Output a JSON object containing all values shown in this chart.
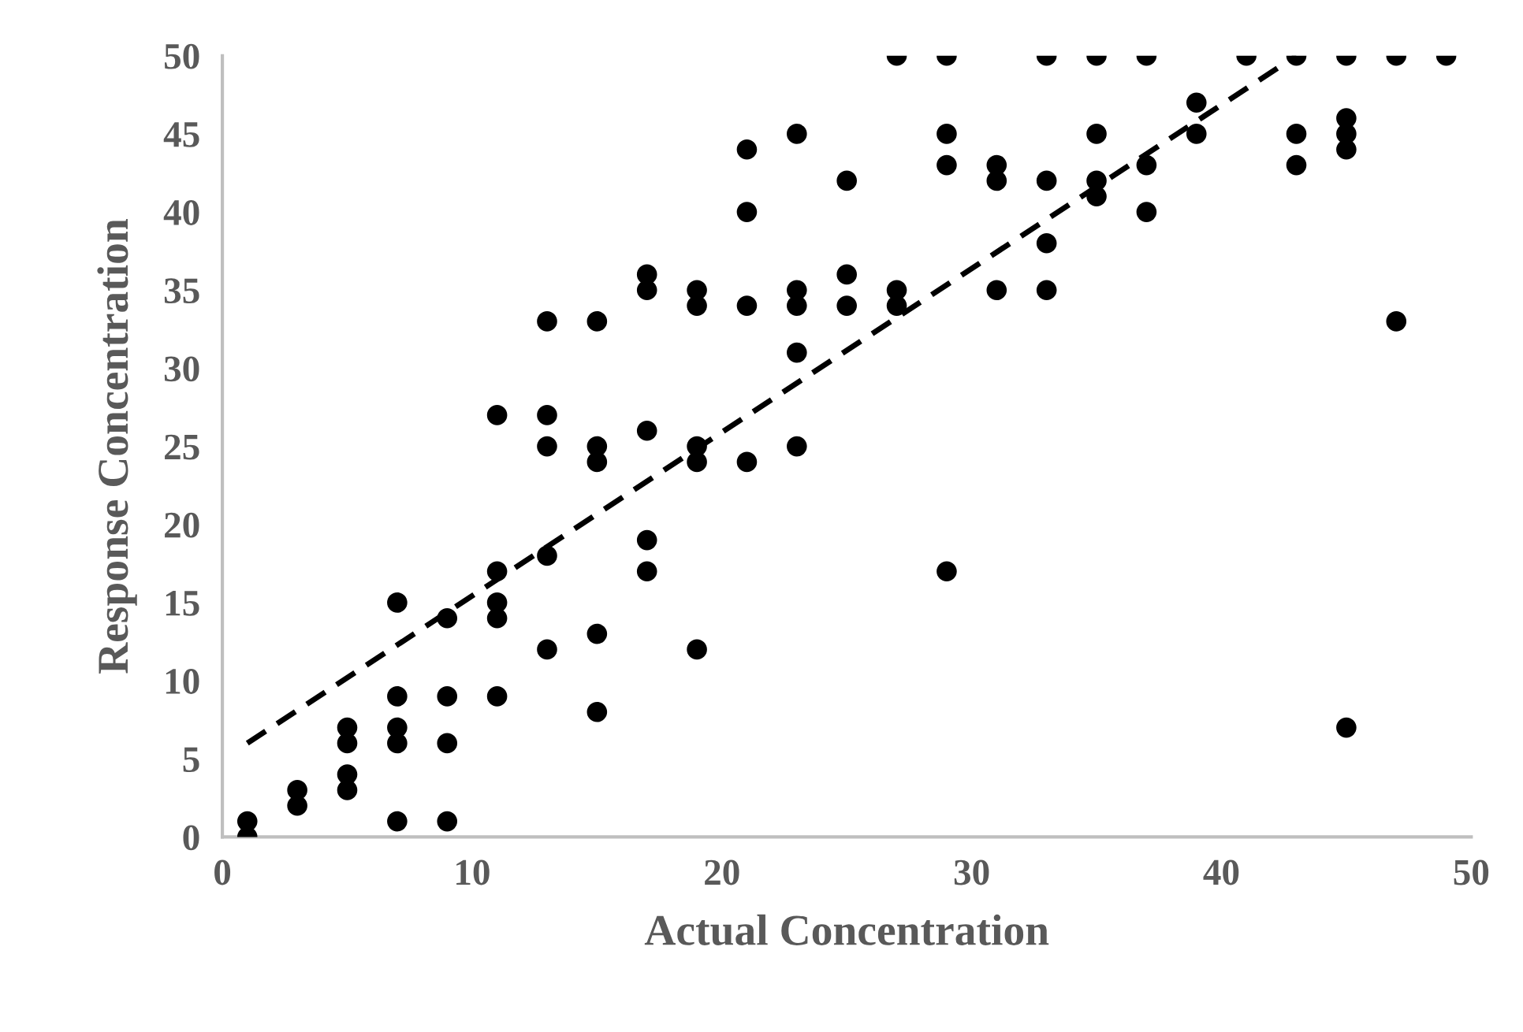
{
  "chart_data": {
    "type": "scatter",
    "xlabel": "Actual Concentration",
    "ylabel": "Response Concentration",
    "xlim": [
      0,
      50
    ],
    "ylim": [
      0,
      50
    ],
    "xticks": [
      0,
      10,
      20,
      30,
      40,
      50
    ],
    "yticks": [
      0,
      5,
      10,
      15,
      20,
      25,
      30,
      35,
      40,
      45,
      50
    ],
    "grid": false,
    "legend": false,
    "marker": "circle",
    "series": [
      {
        "color": "#000000",
        "x": [
          1,
          1,
          3,
          3,
          5,
          5,
          5,
          5,
          7,
          7,
          7,
          7,
          7,
          9,
          9,
          9,
          9,
          11,
          11,
          11,
          11,
          11,
          13,
          13,
          13,
          13,
          13,
          15,
          15,
          15,
          15,
          15,
          17,
          17,
          17,
          17,
          17,
          19,
          19,
          19,
          19,
          19,
          21,
          21,
          21,
          21,
          23,
          23,
          23,
          23,
          23,
          25,
          25,
          25,
          27,
          27,
          27,
          29,
          29,
          29,
          29,
          31,
          31,
          31,
          33,
          33,
          33,
          33,
          35,
          35,
          35,
          35,
          37,
          37,
          37,
          39,
          39,
          41,
          43,
          43,
          43,
          45,
          45,
          45,
          45,
          45,
          47,
          47,
          49
        ],
        "values": [
          1,
          0,
          3,
          2,
          7,
          6,
          4,
          3,
          15,
          9,
          7,
          6,
          1,
          14,
          9,
          6,
          1,
          27,
          17,
          15,
          14,
          9,
          33,
          27,
          25,
          18,
          12,
          33,
          25,
          24,
          13,
          8,
          36,
          35,
          26,
          19,
          17,
          35,
          34,
          25,
          24,
          12,
          44,
          40,
          34,
          24,
          45,
          35,
          34,
          31,
          25,
          42,
          36,
          34,
          50,
          35,
          34,
          50,
          45,
          43,
          17,
          43,
          42,
          35,
          50,
          42,
          38,
          35,
          50,
          45,
          42,
          41,
          50,
          43,
          40,
          47,
          45,
          50,
          50,
          45,
          43,
          50,
          46,
          45,
          44,
          7,
          50,
          33,
          50
        ]
      },
      {
        "type": "line",
        "color": "#000000",
        "line_style": "dashed",
        "marker": "none",
        "x": [
          1,
          43
        ],
        "values": [
          6,
          50
        ]
      }
    ]
  }
}
